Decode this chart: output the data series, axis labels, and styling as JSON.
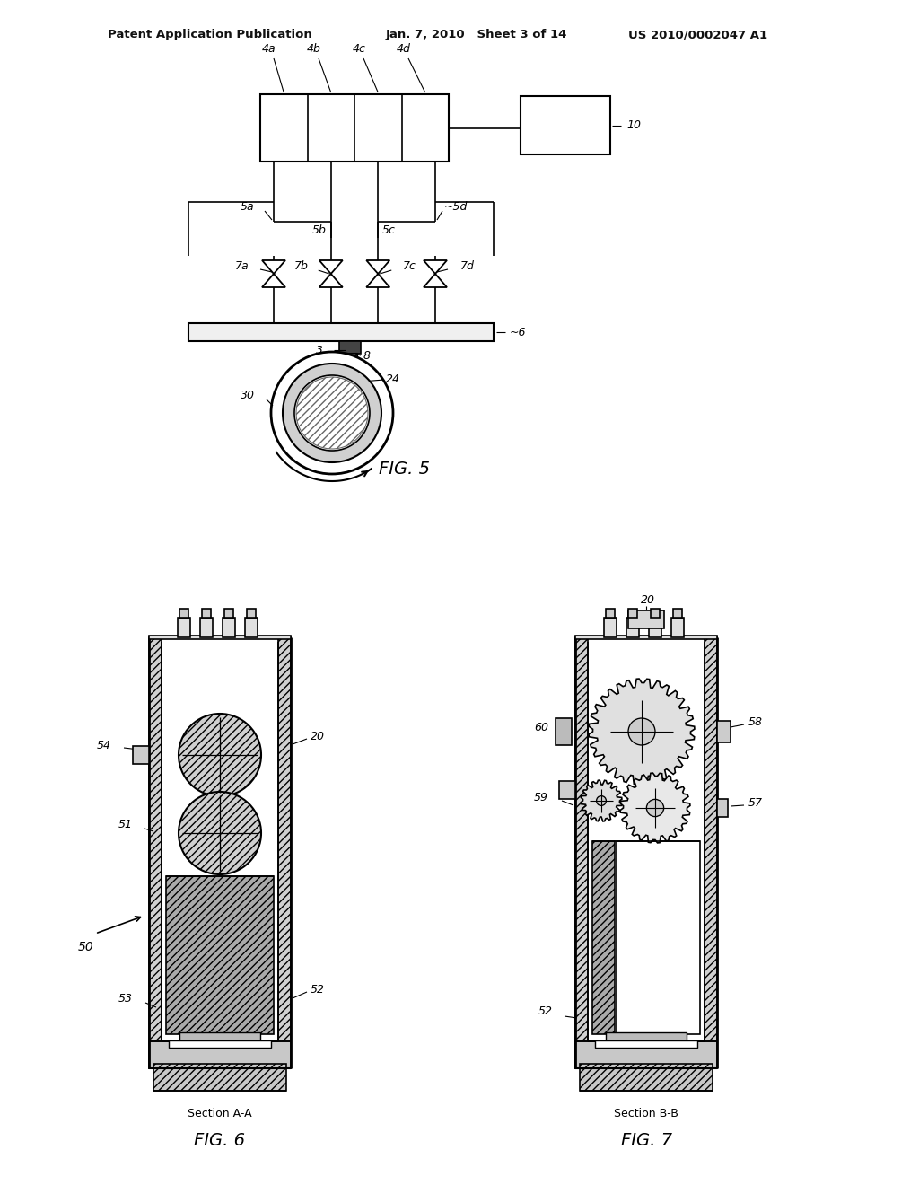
{
  "bg_color": "#ffffff",
  "header_left": "Patent Application Publication",
  "header_mid": "Jan. 7, 2010   Sheet 3 of 14",
  "header_right": "US 2010/0002047 A1",
  "fig5_label": "FIG. 5",
  "fig6_label": "FIG. 6",
  "fig7_label": "FIG. 7",
  "section_aa": "Section A-A",
  "section_bb": "Section B-B",
  "lc": "#000000",
  "gray_fill": "#c8c8c8",
  "dark_gray": "#888888",
  "light_gray": "#e8e8e8"
}
